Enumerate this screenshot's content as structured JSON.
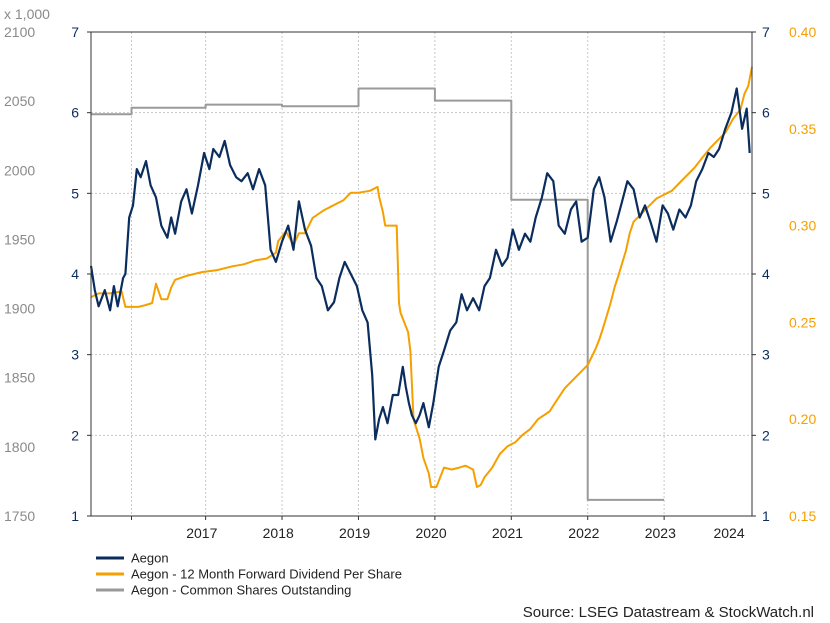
{
  "chart_data": {
    "type": "line",
    "source": "Source: LSEG Datastream & StockWatch.nl",
    "multiplier_label": "x 1,000",
    "colors": {
      "aegon": "#0b2d5e",
      "dividend": "#f5a000",
      "shares": "#9a9a9a",
      "left_axis": "#8a8a8a",
      "inner_axis": "#0b2d5e",
      "right_axis": "#f5a000",
      "grid": "#c8c8c8",
      "frame": "#333333"
    },
    "x_axis": {
      "range": [
        2016.0,
        2024.65
      ],
      "ticks": [
        {
          "pos": 2017.45,
          "label": "2017"
        },
        {
          "pos": 2018.45,
          "label": "2018"
        },
        {
          "pos": 2019.45,
          "label": "2019"
        },
        {
          "pos": 2020.45,
          "label": "2020"
        },
        {
          "pos": 2021.45,
          "label": "2021"
        },
        {
          "pos": 2022.45,
          "label": "2022"
        },
        {
          "pos": 2023.45,
          "label": "2023"
        },
        {
          "pos": 2024.35,
          "label": "2024"
        }
      ],
      "gridlines": [
        2016.53,
        2017.5,
        2018.5,
        2019.5,
        2020.5,
        2021.5,
        2022.5,
        2023.5
      ]
    },
    "axes": {
      "left": {
        "min": 1750,
        "max": 2100,
        "ticks": [
          1750,
          1800,
          1850,
          1900,
          1950,
          2000,
          2050,
          2100
        ]
      },
      "inner": {
        "min": 1,
        "max": 7,
        "ticks": [
          1,
          2,
          3,
          4,
          5,
          6,
          7
        ]
      },
      "right": {
        "min": 0.15,
        "max": 0.4,
        "ticks": [
          "0.15",
          "0.20",
          "0.25",
          "0.30",
          "0.35",
          "0.40"
        ]
      }
    },
    "legend": {
      "placement": "bottom-left",
      "entries": [
        {
          "key": "aegon",
          "label": "Aegon"
        },
        {
          "key": "dividend",
          "label": "Aegon - 12 Month Forward Dividend Per Share"
        },
        {
          "key": "shares",
          "label": "Aegon - Common Shares Outstanding"
        }
      ]
    },
    "series": [
      {
        "key": "aegon",
        "name": "Aegon",
        "axis": "inner",
        "x": [
          2016.0,
          2016.05,
          2016.1,
          2016.18,
          2016.25,
          2016.3,
          2016.35,
          2016.42,
          2016.45,
          2016.5,
          2016.55,
          2016.6,
          2016.65,
          2016.72,
          2016.78,
          2016.85,
          2016.92,
          2017.0,
          2017.05,
          2017.1,
          2017.18,
          2017.25,
          2017.32,
          2017.4,
          2017.48,
          2017.55,
          2017.6,
          2017.68,
          2017.75,
          2017.82,
          2017.9,
          2017.97,
          2018.05,
          2018.12,
          2018.2,
          2018.28,
          2018.35,
          2018.42,
          2018.5,
          2018.58,
          2018.65,
          2018.72,
          2018.8,
          2018.88,
          2018.95,
          2019.02,
          2019.1,
          2019.18,
          2019.25,
          2019.32,
          2019.4,
          2019.48,
          2019.55,
          2019.62,
          2019.68,
          2019.72,
          2019.77,
          2019.82,
          2019.88,
          2019.95,
          2020.02,
          2020.08,
          2020.12,
          2020.16,
          2020.2,
          2020.25,
          2020.3,
          2020.35,
          2020.42,
          2020.48,
          2020.55,
          2020.62,
          2020.7,
          2020.78,
          2020.85,
          2020.92,
          2021.0,
          2021.08,
          2021.15,
          2021.22,
          2021.3,
          2021.38,
          2021.45,
          2021.52,
          2021.6,
          2021.68,
          2021.75,
          2021.82,
          2021.9,
          2021.97,
          2022.05,
          2022.12,
          2022.2,
          2022.28,
          2022.35,
          2022.42,
          2022.5,
          2022.58,
          2022.65,
          2022.72,
          2022.8,
          2022.88,
          2022.95,
          2023.02,
          2023.1,
          2023.18,
          2023.25,
          2023.32,
          2023.4,
          2023.48,
          2023.55,
          2023.62,
          2023.7,
          2023.78,
          2023.85,
          2023.92,
          2024.0,
          2024.08,
          2024.15,
          2024.22,
          2024.3,
          2024.38,
          2024.45,
          2024.52,
          2024.58,
          2024.62
        ],
        "values": [
          4.1,
          3.8,
          3.6,
          3.8,
          3.55,
          3.85,
          3.6,
          3.95,
          4.0,
          4.7,
          4.85,
          5.3,
          5.2,
          5.4,
          5.1,
          4.95,
          4.6,
          4.45,
          4.7,
          4.5,
          4.9,
          5.05,
          4.75,
          5.1,
          5.5,
          5.3,
          5.55,
          5.45,
          5.65,
          5.35,
          5.2,
          5.15,
          5.25,
          5.05,
          5.3,
          5.1,
          4.3,
          4.15,
          4.4,
          4.6,
          4.3,
          4.9,
          4.55,
          4.35,
          3.95,
          3.85,
          3.55,
          3.65,
          3.95,
          4.15,
          4.0,
          3.85,
          3.55,
          3.4,
          2.75,
          1.95,
          2.2,
          2.35,
          2.15,
          2.5,
          2.5,
          2.85,
          2.6,
          2.4,
          2.25,
          2.15,
          2.25,
          2.4,
          2.1,
          2.4,
          2.85,
          3.05,
          3.3,
          3.4,
          3.75,
          3.55,
          3.7,
          3.55,
          3.85,
          3.95,
          4.3,
          4.1,
          4.2,
          4.55,
          4.3,
          4.5,
          4.4,
          4.7,
          4.95,
          5.25,
          5.15,
          4.6,
          4.5,
          4.8,
          4.9,
          4.4,
          4.45,
          5.05,
          5.2,
          4.95,
          4.4,
          4.65,
          4.9,
          5.15,
          5.05,
          4.7,
          4.85,
          4.65,
          4.4,
          4.85,
          4.75,
          4.55,
          4.8,
          4.7,
          4.85,
          5.15,
          5.3,
          5.5,
          5.45,
          5.55,
          5.8,
          6.0,
          6.3,
          5.8,
          6.05,
          5.5
        ]
      },
      {
        "key": "dividend",
        "name": "Aegon - 12 Month Forward Dividend Per Share",
        "axis": "right",
        "x": [
          2016.0,
          2016.1,
          2016.25,
          2016.4,
          2016.45,
          2016.62,
          2016.72,
          2016.8,
          2016.85,
          2016.92,
          2017.0,
          2017.05,
          2017.1,
          2017.25,
          2017.45,
          2017.65,
          2017.85,
          2018.0,
          2018.15,
          2018.3,
          2018.42,
          2018.45,
          2018.55,
          2018.65,
          2018.72,
          2018.8,
          2018.9,
          2019.05,
          2019.15,
          2019.3,
          2019.4,
          2019.5,
          2019.65,
          2019.75,
          2019.77,
          2019.82,
          2019.85,
          2020.0,
          2020.03,
          2020.05,
          2020.15,
          2020.18,
          2020.22,
          2020.3,
          2020.35,
          2020.42,
          2020.45,
          2020.52,
          2020.62,
          2020.72,
          2020.82,
          2020.9,
          2021.0,
          2021.05,
          2021.1,
          2021.15,
          2021.25,
          2021.35,
          2021.45,
          2021.55,
          2021.65,
          2021.75,
          2021.85,
          2022.0,
          2022.1,
          2022.2,
          2022.3,
          2022.4,
          2022.5,
          2022.6,
          2022.65,
          2022.7,
          2022.8,
          2022.85,
          2022.9,
          2023.0,
          2023.05,
          2023.1,
          2023.2,
          2023.3,
          2023.4,
          2023.5,
          2023.6,
          2023.7,
          2023.8,
          2023.9,
          2024.0,
          2024.1,
          2024.2,
          2024.3,
          2024.4,
          2024.5,
          2024.55,
          2024.6,
          2024.65
        ],
        "values": [
          0.263,
          0.265,
          0.265,
          0.266,
          0.258,
          0.258,
          0.259,
          0.26,
          0.27,
          0.262,
          0.262,
          0.268,
          0.272,
          0.274,
          0.276,
          0.277,
          0.279,
          0.28,
          0.282,
          0.283,
          0.286,
          0.292,
          0.297,
          0.29,
          0.296,
          0.296,
          0.304,
          0.308,
          0.31,
          0.313,
          0.317,
          0.317,
          0.318,
          0.32,
          0.315,
          0.307,
          0.3,
          0.3,
          0.26,
          0.255,
          0.245,
          0.235,
          0.2,
          0.19,
          0.18,
          0.172,
          0.165,
          0.165,
          0.175,
          0.174,
          0.175,
          0.176,
          0.174,
          0.165,
          0.166,
          0.17,
          0.175,
          0.182,
          0.186,
          0.188,
          0.192,
          0.195,
          0.2,
          0.204,
          0.21,
          0.216,
          0.22,
          0.224,
          0.228,
          0.236,
          0.241,
          0.247,
          0.26,
          0.268,
          0.274,
          0.287,
          0.296,
          0.302,
          0.306,
          0.31,
          0.314,
          0.316,
          0.318,
          0.322,
          0.326,
          0.33,
          0.335,
          0.34,
          0.344,
          0.348,
          0.355,
          0.36,
          0.368,
          0.372,
          0.382
        ]
      },
      {
        "key": "shares",
        "name": "Aegon - Common Shares Outstanding",
        "axis": "inner",
        "x": [
          2016.0,
          2016.53,
          2016.53,
          2017.5,
          2017.5,
          2018.5,
          2018.5,
          2019.5,
          2019.5,
          2020.5,
          2020.5,
          2021.5,
          2021.5,
          2022.5,
          2022.5,
          2023.5
        ],
        "values": [
          5.98,
          5.98,
          6.06,
          6.06,
          6.1,
          6.1,
          6.08,
          6.08,
          6.3,
          6.3,
          6.15,
          6.15,
          4.92,
          4.92,
          1.2,
          1.2
        ]
      }
    ]
  }
}
